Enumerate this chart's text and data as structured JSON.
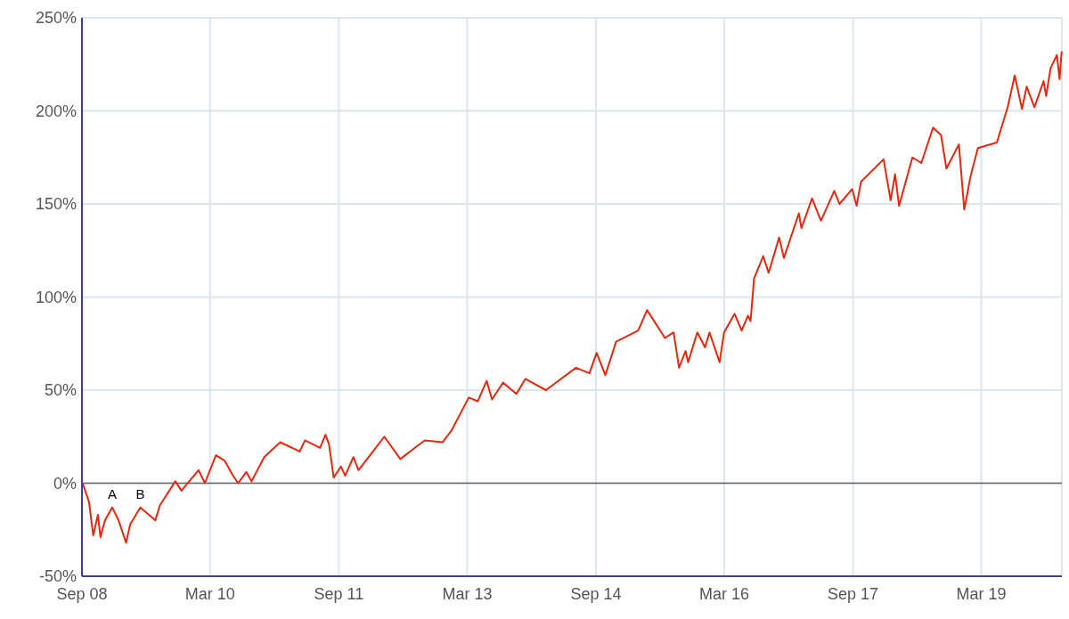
{
  "chart_data": {
    "type": "line",
    "x": [
      "2008-09-04",
      "2008-10-01",
      "2008-10-19",
      "2008-11-08",
      "2008-11-19",
      "2008-12-08",
      "2009-01-08",
      "2009-02-04",
      "2009-03-08",
      "2009-03-26",
      "2009-05-08",
      "2009-07-11",
      "2009-07-30",
      "2009-10-04",
      "2009-10-30",
      "2010-01-11",
      "2010-02-07",
      "2010-03-26",
      "2010-05-03",
      "2010-06-07",
      "2010-06-29",
      "2010-08-03",
      "2010-08-25",
      "2010-10-18",
      "2010-12-25",
      "2011-03-18",
      "2011-04-10",
      "2011-06-13",
      "2011-07-06",
      "2011-07-21",
      "2011-08-10",
      "2011-09-10",
      "2011-09-28",
      "2011-11-02",
      "2011-11-24",
      "2012-03-13",
      "2012-05-20",
      "2012-09-01",
      "2012-11-16",
      "2012-12-23",
      "2013-03-08",
      "2013-04-15",
      "2013-05-23",
      "2013-06-15",
      "2013-08-01",
      "2013-09-27",
      "2013-11-04",
      "2014-01-31",
      "2014-06-08",
      "2014-08-04",
      "2014-09-04",
      "2014-10-11",
      "2014-11-26",
      "2015-02-28",
      "2015-04-07",
      "2015-06-22",
      "2015-07-29",
      "2015-08-21",
      "2015-09-18",
      "2015-09-29",
      "2015-11-07",
      "2015-12-10",
      "2015-12-29",
      "2016-02-10",
      "2016-02-29",
      "2016-04-14",
      "2016-05-14",
      "2016-06-10",
      "2016-06-21",
      "2016-07-06",
      "2016-08-14",
      "2016-09-06",
      "2016-10-21",
      "2016-11-10",
      "2017-01-13",
      "2017-01-24",
      "2017-03-10",
      "2017-04-17",
      "2017-06-13",
      "2017-07-05",
      "2017-08-28",
      "2017-09-16",
      "2017-10-05",
      "2018-01-09",
      "2018-02-08",
      "2018-02-27",
      "2018-03-16",
      "2018-05-12",
      "2018-06-19",
      "2018-08-08",
      "2018-09-11",
      "2018-10-04",
      "2018-11-26",
      "2018-12-19",
      "2019-01-15",
      "2019-02-15",
      "2019-05-07",
      "2019-06-22",
      "2019-07-22",
      "2019-08-22",
      "2019-09-11",
      "2019-10-14",
      "2019-11-22",
      "2019-12-03",
      "2019-12-22",
      "2020-01-18",
      "2020-01-29",
      "2020-02-07"
    ],
    "series": [
      {
        "color": "#e8260c",
        "values": [
          0,
          -10,
          -28,
          -17,
          -29,
          -20,
          -13,
          -20,
          -32,
          -22,
          -13,
          -20,
          -12,
          1,
          -4,
          7,
          0,
          15,
          12,
          4,
          0,
          6,
          1,
          14,
          22,
          17,
          23,
          19,
          26,
          21,
          3,
          9,
          4,
          14,
          7,
          25,
          13,
          23,
          22,
          28,
          46,
          44,
          55,
          45,
          54,
          48,
          56,
          50,
          62,
          59,
          70,
          58,
          76,
          82,
          93,
          78,
          81,
          62,
          71,
          65,
          81,
          73,
          81,
          65,
          81,
          91,
          82,
          90,
          87,
          110,
          122,
          113,
          132,
          121,
          145,
          137,
          153,
          141,
          157,
          150,
          158,
          149,
          162,
          174,
          152,
          166,
          149,
          175,
          172,
          191,
          187,
          169,
          182,
          147,
          165,
          180,
          183,
          202,
          219,
          201,
          213,
          202,
          216,
          208,
          223,
          230,
          217,
          232
        ]
      }
    ],
    "xlim": [
      "2008-09-01",
      "2020-02-08"
    ],
    "ylim": [
      -50,
      250
    ],
    "xticks": [
      {
        "value": "2008-09",
        "label": "Sep 08"
      },
      {
        "value": "2010-03",
        "label": "Mar 10"
      },
      {
        "value": "2011-09",
        "label": "Sep 11"
      },
      {
        "value": "2013-03",
        "label": "Mar 13"
      },
      {
        "value": "2014-09",
        "label": "Sep 14"
      },
      {
        "value": "2016-03",
        "label": "Mar 16"
      },
      {
        "value": "2017-09",
        "label": "Sep 17"
      },
      {
        "value": "2019-03",
        "label": "Mar 19"
      }
    ],
    "yticks": [
      {
        "value": -50,
        "label": "-50%"
      },
      {
        "value": 0,
        "label": "0%"
      },
      {
        "value": 50,
        "label": "50%"
      },
      {
        "value": 100,
        "label": "100%"
      },
      {
        "value": 150,
        "label": "150%"
      },
      {
        "value": 200,
        "label": "200%"
      },
      {
        "value": 250,
        "label": "250%"
      }
    ],
    "grid": true,
    "ref_lines": [
      {
        "axis": "y",
        "value": 0,
        "color": "#666666"
      }
    ],
    "annotations": [
      {
        "text": "A",
        "x": "2009-01-08",
        "y": -13
      },
      {
        "text": "B",
        "x": "2009-05-08",
        "y": -13
      }
    ]
  }
}
